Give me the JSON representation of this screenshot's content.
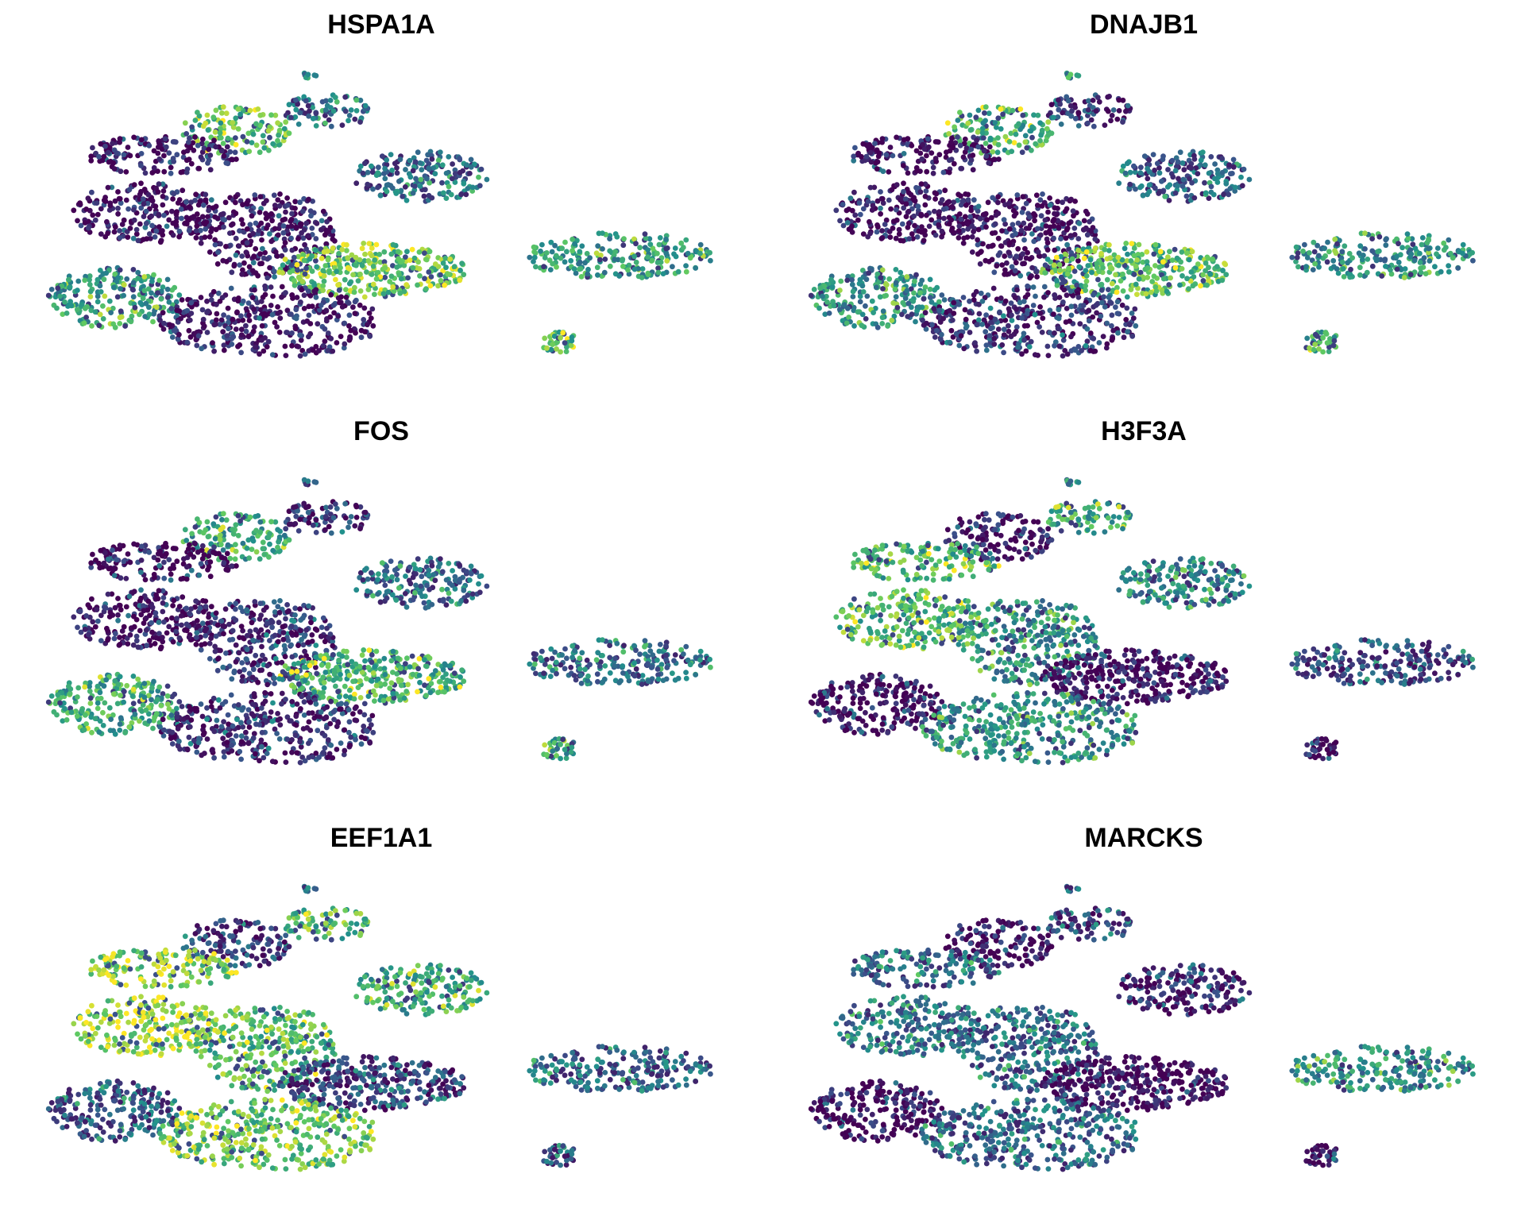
{
  "layout": {
    "rows": 3,
    "cols": 2,
    "axes": "hidden",
    "grid": false,
    "legend": "none"
  },
  "colormap": {
    "name": "viridis",
    "stops": [
      "#440154",
      "#3b528b",
      "#21918c",
      "#5ec962",
      "#fde725"
    ]
  },
  "chart_data": [
    {
      "type": "scatter",
      "title": "HSPA1A",
      "regions": {
        "cluster_top": 0.35,
        "cluster_topcenter": 0.7,
        "cluster_upperleft": 0.05,
        "cluster_upperright": 0.35,
        "cluster_left": 0.05,
        "cluster_central": 0.05,
        "cluster_centerright": 0.75,
        "cluster_bottomleft": 0.55,
        "cluster_bottom": 0.1,
        "cluster_rightarm": 0.55,
        "cluster_islet": 0.7,
        "cluster_tiny": 0.5
      }
    },
    {
      "type": "scatter",
      "title": "DNAJB1",
      "regions": {
        "cluster_top": 0.15,
        "cluster_topcenter": 0.65,
        "cluster_upperleft": 0.05,
        "cluster_upperright": 0.3,
        "cluster_left": 0.05,
        "cluster_central": 0.05,
        "cluster_centerright": 0.7,
        "cluster_bottomleft": 0.5,
        "cluster_bottom": 0.15,
        "cluster_rightarm": 0.5,
        "cluster_islet": 0.65,
        "cluster_tiny": 0.4
      }
    },
    {
      "type": "scatter",
      "title": "FOS",
      "regions": {
        "cluster_top": 0.15,
        "cluster_topcenter": 0.6,
        "cluster_upperleft": 0.05,
        "cluster_upperright": 0.35,
        "cluster_left": 0.05,
        "cluster_central": 0.15,
        "cluster_centerright": 0.65,
        "cluster_bottomleft": 0.6,
        "cluster_bottom": 0.15,
        "cluster_rightarm": 0.35,
        "cluster_islet": 0.55,
        "cluster_tiny": 0.3
      }
    },
    {
      "type": "scatter",
      "title": "H3F3A",
      "regions": {
        "cluster_top": 0.6,
        "cluster_topcenter": 0.05,
        "cluster_upperleft": 0.65,
        "cluster_upperright": 0.45,
        "cluster_left": 0.7,
        "cluster_central": 0.5,
        "cluster_centerright": 0.05,
        "cluster_bottomleft": 0.05,
        "cluster_bottom": 0.5,
        "cluster_rightarm": 0.25,
        "cluster_islet": 0.05,
        "cluster_tiny": 0.5
      }
    },
    {
      "type": "scatter",
      "title": "EEF1A1",
      "regions": {
        "cluster_top": 0.7,
        "cluster_topcenter": 0.2,
        "cluster_upperleft": 0.8,
        "cluster_upperright": 0.6,
        "cluster_left": 0.85,
        "cluster_central": 0.7,
        "cluster_centerright": 0.2,
        "cluster_bottomleft": 0.3,
        "cluster_bottom": 0.75,
        "cluster_rightarm": 0.35,
        "cluster_islet": 0.25,
        "cluster_tiny": 0.45
      }
    },
    {
      "type": "scatter",
      "title": "MARCKS",
      "regions": {
        "cluster_top": 0.2,
        "cluster_topcenter": 0.05,
        "cluster_upperleft": 0.4,
        "cluster_upperright": 0.1,
        "cluster_left": 0.4,
        "cluster_central": 0.35,
        "cluster_centerright": 0.02,
        "cluster_bottomleft": 0.05,
        "cluster_bottom": 0.35,
        "cluster_rightarm": 0.5,
        "cluster_islet": 0.15,
        "cluster_tiny": 0.3
      }
    }
  ]
}
